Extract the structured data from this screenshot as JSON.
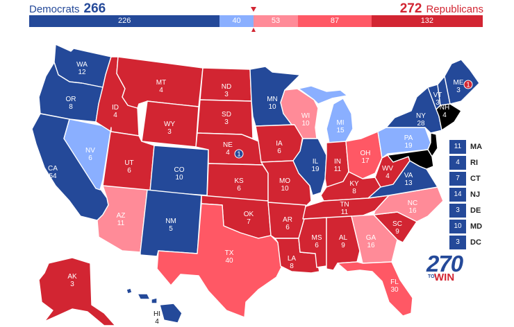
{
  "header": {
    "dem_label": "Democrats",
    "dem_total": "266",
    "rep_label": "Republicans",
    "rep_total": "272"
  },
  "tally": [
    {
      "value": 226,
      "label": "226",
      "color": "#244999"
    },
    {
      "value": 40,
      "label": "40",
      "color": "#8aafff"
    },
    {
      "value": 53,
      "label": "53",
      "color": "#ff8b98"
    },
    {
      "value": 87,
      "label": "87",
      "color": "#ff5865"
    },
    {
      "value": 132,
      "label": "132",
      "color": "#d22532"
    }
  ],
  "colors": {
    "safe_d": "#244999",
    "lean_d": "#8aafff",
    "lean_r": "#ff8b98",
    "likely_r": "#ff5865",
    "safe_r": "#d22532",
    "outline": "#ffffff"
  },
  "states": [
    {
      "abbr": "WA",
      "votes": "12",
      "rating": "safe_d"
    },
    {
      "abbr": "OR",
      "votes": "8",
      "rating": "safe_d"
    },
    {
      "abbr": "CA",
      "votes": "54",
      "rating": "safe_d"
    },
    {
      "abbr": "NV",
      "votes": "6",
      "rating": "lean_d"
    },
    {
      "abbr": "ID",
      "votes": "4",
      "rating": "safe_r"
    },
    {
      "abbr": "MT",
      "votes": "4",
      "rating": "safe_r"
    },
    {
      "abbr": "WY",
      "votes": "3",
      "rating": "safe_r"
    },
    {
      "abbr": "UT",
      "votes": "6",
      "rating": "safe_r"
    },
    {
      "abbr": "CO",
      "votes": "10",
      "rating": "safe_d"
    },
    {
      "abbr": "AZ",
      "votes": "11",
      "rating": "lean_r"
    },
    {
      "abbr": "NM",
      "votes": "5",
      "rating": "safe_d"
    },
    {
      "abbr": "ND",
      "votes": "3",
      "rating": "safe_r"
    },
    {
      "abbr": "SD",
      "votes": "3",
      "rating": "safe_r"
    },
    {
      "abbr": "NE",
      "votes": "4",
      "rating": "safe_r"
    },
    {
      "abbr": "KS",
      "votes": "6",
      "rating": "safe_r"
    },
    {
      "abbr": "OK",
      "votes": "7",
      "rating": "safe_r"
    },
    {
      "abbr": "TX",
      "votes": "40",
      "rating": "likely_r"
    },
    {
      "abbr": "MN",
      "votes": "10",
      "rating": "safe_d"
    },
    {
      "abbr": "IA",
      "votes": "6",
      "rating": "safe_r"
    },
    {
      "abbr": "MO",
      "votes": "10",
      "rating": "safe_r"
    },
    {
      "abbr": "AR",
      "votes": "6",
      "rating": "safe_r"
    },
    {
      "abbr": "LA",
      "votes": "8",
      "rating": "safe_r"
    },
    {
      "abbr": "WI",
      "votes": "10",
      "rating": "lean_r"
    },
    {
      "abbr": "IL",
      "votes": "19",
      "rating": "safe_d"
    },
    {
      "abbr": "MI",
      "votes": "15",
      "rating": "lean_d"
    },
    {
      "abbr": "IN",
      "votes": "11",
      "rating": "safe_r"
    },
    {
      "abbr": "OH",
      "votes": "17",
      "rating": "likely_r"
    },
    {
      "abbr": "KY",
      "votes": "8",
      "rating": "safe_r"
    },
    {
      "abbr": "TN",
      "votes": "11",
      "rating": "safe_r"
    },
    {
      "abbr": "MS",
      "votes": "6",
      "rating": "safe_r"
    },
    {
      "abbr": "AL",
      "votes": "9",
      "rating": "safe_r"
    },
    {
      "abbr": "GA",
      "votes": "16",
      "rating": "lean_r"
    },
    {
      "abbr": "FL",
      "votes": "30",
      "rating": "likely_r"
    },
    {
      "abbr": "SC",
      "votes": "9",
      "rating": "safe_r"
    },
    {
      "abbr": "NC",
      "votes": "16",
      "rating": "lean_r"
    },
    {
      "abbr": "VA",
      "votes": "13",
      "rating": "safe_d"
    },
    {
      "abbr": "WV",
      "votes": "4",
      "rating": "safe_r"
    },
    {
      "abbr": "PA",
      "votes": "19",
      "rating": "lean_d"
    },
    {
      "abbr": "NY",
      "votes": "28",
      "rating": "safe_d"
    },
    {
      "abbr": "ME",
      "votes": "3",
      "rating": "safe_d"
    },
    {
      "abbr": "VT",
      "votes": "3",
      "rating": "safe_d"
    },
    {
      "abbr": "NH",
      "votes": "4",
      "rating": "safe_d"
    },
    {
      "abbr": "AK",
      "votes": "3",
      "rating": "safe_r"
    },
    {
      "abbr": "HI",
      "votes": "4",
      "rating": "safe_d"
    }
  ],
  "districts": [
    {
      "state": "ME",
      "votes": "1",
      "rating": "safe_r"
    },
    {
      "state": "NE",
      "votes": "1",
      "rating": "safe_d"
    }
  ],
  "small_states": [
    {
      "abbr": "MA",
      "votes": "11",
      "rating": "safe_d"
    },
    {
      "abbr": "RI",
      "votes": "4",
      "rating": "safe_d"
    },
    {
      "abbr": "CT",
      "votes": "7",
      "rating": "safe_d"
    },
    {
      "abbr": "NJ",
      "votes": "14",
      "rating": "safe_d"
    },
    {
      "abbr": "DE",
      "votes": "3",
      "rating": "safe_d"
    },
    {
      "abbr": "MD",
      "votes": "10",
      "rating": "safe_d"
    },
    {
      "abbr": "DC",
      "votes": "3",
      "rating": "safe_d"
    }
  ],
  "logo": {
    "number": "270",
    "to": "TO",
    "win": "WIN"
  }
}
